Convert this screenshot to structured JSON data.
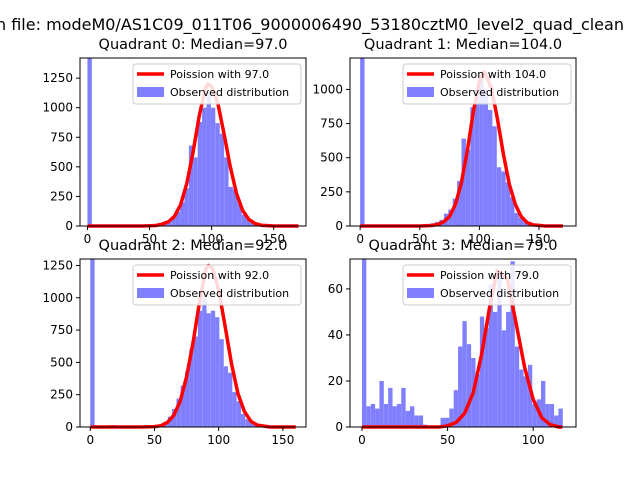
{
  "suptitle": "n file: modeM0/AS1C09_011T06_9000006490_53180cztM0_level2_quad_clean",
  "colors": {
    "fit": "#ff0000",
    "hist": "#8080ff",
    "axis": "#000000",
    "background": "#ffffff"
  },
  "chart_data": [
    {
      "type": "bar",
      "title": "Quadrant 0: Median=97.0",
      "median": 97,
      "xlim": [
        -6,
        176
      ],
      "ylim": [
        0,
        1420
      ],
      "xticks": [
        0,
        50,
        100,
        150
      ],
      "yticks": [
        0,
        250,
        500,
        750,
        1000,
        1250
      ],
      "legend": {
        "placement": "top-right",
        "fit_label": "Poission with 97.0",
        "hist_label": "Observed distribution"
      },
      "bin_width": 3.55,
      "hist_bins": [
        0,
        46.2,
        49.7,
        53.3,
        56.8,
        60.4,
        63.9,
        67.5,
        71,
        74.6,
        78.1,
        81.7,
        85.2,
        88.8,
        92.3,
        95.9,
        99.4,
        103,
        106.5,
        110.1,
        113.6,
        117.2,
        120.7,
        124.3,
        127.8,
        131.4,
        134.9,
        138.5,
        142
      ],
      "hist_counts": [
        1420,
        8,
        8,
        12,
        15,
        20,
        30,
        80,
        120,
        200,
        320,
        680,
        580,
        880,
        1000,
        1120,
        1000,
        870,
        780,
        580,
        330,
        310,
        200,
        95,
        60,
        40,
        25,
        15,
        8
      ],
      "fit_x": [
        0,
        45,
        55,
        60,
        65,
        70,
        75,
        80,
        85,
        90,
        95,
        97,
        100,
        105,
        110,
        115,
        120,
        125,
        130,
        135,
        140,
        150,
        170
      ],
      "fit_y": [
        0,
        0,
        4,
        15,
        35,
        80,
        180,
        360,
        620,
        930,
        1165,
        1200,
        1180,
        1040,
        780,
        500,
        275,
        130,
        55,
        20,
        7,
        0,
        0
      ]
    },
    {
      "type": "bar",
      "title": "Quadrant 1: Median=104.0",
      "median": 104,
      "xlim": [
        -8.5,
        181
      ],
      "ylim": [
        0,
        1230
      ],
      "xticks": [
        0,
        50,
        100,
        150
      ],
      "yticks": [
        0,
        250,
        500,
        750,
        1000
      ],
      "legend": {
        "placement": "top-right",
        "fit_label": "Poission with 104.0",
        "hist_label": "Observed distribution"
      },
      "bin_width": 3.7,
      "hist_bins": [
        0,
        48,
        51.7,
        55.4,
        59.1,
        62.8,
        66.5,
        70.2,
        73.9,
        77.6,
        81.3,
        85,
        88.7,
        92.4,
        96.1,
        99.8,
        103.5,
        107.2,
        110.9,
        114.6,
        118.3,
        122,
        125.7,
        129.4,
        133.1,
        136.8,
        140.5,
        144.2,
        147.9
      ],
      "hist_counts": [
        1230,
        8,
        10,
        15,
        20,
        30,
        45,
        90,
        120,
        200,
        330,
        640,
        560,
        870,
        1000,
        1100,
        1000,
        850,
        730,
        430,
        400,
        320,
        210,
        95,
        60,
        40,
        25,
        15,
        8
      ],
      "fit_x": [
        0,
        50,
        60,
        65,
        70,
        75,
        80,
        85,
        90,
        95,
        100,
        104,
        110,
        115,
        120,
        125,
        130,
        135,
        140,
        145,
        155,
        170
      ],
      "fit_y": [
        0,
        0,
        4,
        12,
        30,
        70,
        160,
        320,
        560,
        840,
        1060,
        1130,
        1010,
        790,
        530,
        310,
        160,
        70,
        25,
        8,
        0,
        0
      ]
    },
    {
      "type": "bar",
      "title": "Quadrant 2: Median=92.0",
      "median": 92,
      "xlim": [
        -8,
        168
      ],
      "ylim": [
        0,
        1300
      ],
      "xticks": [
        0,
        50,
        100,
        150
      ],
      "yticks": [
        0,
        250,
        500,
        750,
        1000,
        1250
      ],
      "legend": {
        "placement": "top-right",
        "fit_label": "Poission with 92.0",
        "hist_label": "Observed distribution"
      },
      "bin_width": 3.35,
      "hist_bins": [
        0,
        16,
        43.6,
        47,
        50.3,
        53.7,
        57,
        60.4,
        63.7,
        67.1,
        70.4,
        73.8,
        77.1,
        80.5,
        83.8,
        87.2,
        90.5,
        93.9,
        97.2,
        100.6,
        103.9,
        107.3,
        110.6,
        114,
        117.3,
        120.7,
        124,
        127.4,
        130.7,
        134.1
      ],
      "hist_counts": [
        1300,
        15,
        10,
        10,
        15,
        20,
        40,
        80,
        140,
        220,
        320,
        430,
        600,
        700,
        900,
        1000,
        880,
        900,
        850,
        680,
        470,
        420,
        270,
        200,
        100,
        60,
        40,
        25,
        15,
        8
      ],
      "fit_x": [
        0,
        40,
        50,
        55,
        60,
        65,
        70,
        75,
        80,
        85,
        90,
        92,
        95,
        100,
        105,
        110,
        115,
        120,
        125,
        130,
        140,
        160
      ],
      "fit_y": [
        0,
        0,
        3,
        10,
        35,
        90,
        200,
        390,
        650,
        960,
        1220,
        1250,
        1230,
        1060,
        780,
        490,
        260,
        120,
        45,
        15,
        0,
        0
      ]
    },
    {
      "type": "bar",
      "title": "Quadrant 3: Median=79.0",
      "median": 79,
      "xlim": [
        -7,
        125
      ],
      "ylim": [
        0,
        73
      ],
      "xticks": [
        0,
        50,
        100
      ],
      "yticks": [
        0,
        20,
        40,
        60
      ],
      "legend": {
        "placement": "top-right",
        "fit_label": "Poission with 79.0",
        "hist_label": "Observed distribution"
      },
      "bin_width": 2.55,
      "hist_bins": [
        0,
        2.55,
        5.1,
        7.65,
        10.2,
        12.75,
        15.3,
        17.85,
        20.4,
        22.95,
        25.5,
        28.05,
        30.6,
        33.15,
        35.7,
        45.9,
        48.45,
        51,
        53.55,
        56.1,
        58.65,
        61.2,
        63.75,
        66.3,
        68.85,
        71.4,
        73.95,
        76.5,
        79.05,
        81.6,
        84.15,
        86.7,
        89.25,
        91.8,
        94.35,
        96.9,
        99.45,
        102,
        104.55,
        107.1,
        109.65,
        112.2,
        114.75
      ],
      "hist_counts": [
        73,
        9,
        10,
        8,
        20,
        10,
        17,
        9,
        10,
        17,
        7,
        9,
        5,
        5,
        1,
        4,
        4,
        8,
        16,
        35,
        46,
        36,
        30,
        23,
        48,
        43,
        62,
        50,
        66,
        42,
        50,
        72,
        35,
        25,
        22,
        27,
        10,
        12,
        20,
        10,
        10,
        5,
        8
      ],
      "fit_x": [
        0,
        45,
        50,
        55,
        60,
        65,
        70,
        75,
        79,
        85,
        90,
        95,
        100,
        105,
        110,
        115,
        117
      ],
      "fit_y": [
        0,
        0,
        0.5,
        2,
        6,
        15,
        32,
        54,
        68,
        64,
        45,
        26,
        12,
        4,
        1,
        0,
        0
      ]
    }
  ]
}
